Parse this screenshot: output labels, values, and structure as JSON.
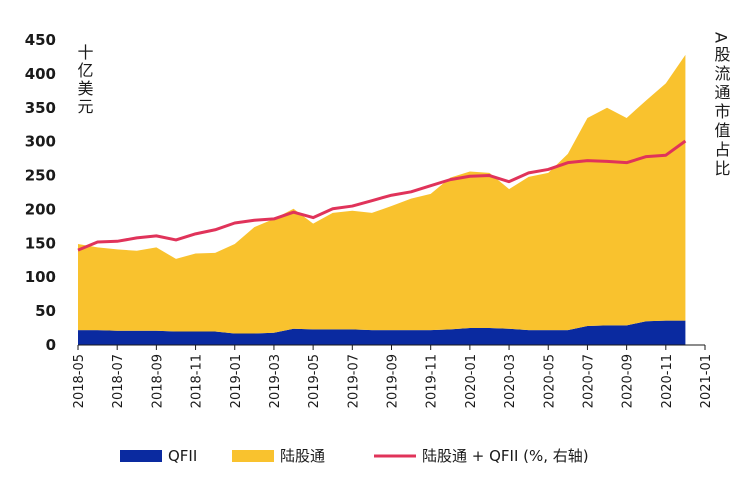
{
  "chart_data": {
    "type": "area",
    "title": "",
    "ylabel": "十亿美元",
    "y2label": "A股流通市值占比",
    "ylim": [
      0,
      450
    ],
    "yticks": [
      0,
      50,
      100,
      150,
      200,
      250,
      300,
      350,
      400,
      450
    ],
    "x": [
      "2018-05",
      "2018-06",
      "2018-07",
      "2018-08",
      "2018-09",
      "2018-10",
      "2018-11",
      "2018-12",
      "2019-01",
      "2019-02",
      "2019-03",
      "2019-04",
      "2019-05",
      "2019-06",
      "2019-07",
      "2019-08",
      "2019-09",
      "2019-10",
      "2019-11",
      "2019-12",
      "2020-01",
      "2020-02",
      "2020-03",
      "2020-04",
      "2020-05",
      "2020-06",
      "2020-07",
      "2020-08",
      "2020-09",
      "2020-10",
      "2020-11",
      "2020-12"
    ],
    "xticks": [
      "2018-05",
      "2018-07",
      "2018-09",
      "2018-11",
      "2019-01",
      "2019-03",
      "2019-05",
      "2019-07",
      "2019-09",
      "2019-11",
      "2020-01",
      "2020-03",
      "2020-05",
      "2020-07",
      "2020-09",
      "2020-11",
      "2021-01"
    ],
    "series": [
      {
        "name": "QFII",
        "kind": "area",
        "color": "#0a2aa0",
        "values": [
          22,
          22,
          21,
          21,
          21,
          20,
          20,
          20,
          17,
          17,
          18,
          24,
          23,
          23,
          23,
          22,
          22,
          22,
          22,
          23,
          25,
          25,
          24,
          22,
          22,
          22,
          28,
          29,
          29,
          35,
          36,
          36
        ]
      },
      {
        "name": "陆股通",
        "kind": "area",
        "color": "#f9c22e",
        "values": [
          127,
          122,
          120,
          118,
          123,
          107,
          115,
          116,
          132,
          157,
          168,
          177,
          156,
          172,
          175,
          173,
          183,
          194,
          201,
          224,
          231,
          229,
          206,
          226,
          232,
          260,
          307,
          321,
          306,
          326,
          350,
          392
        ]
      },
      {
        "name": "陆股通 + QFII (%, 右轴)",
        "kind": "line",
        "color": "#e0335a",
        "values": [
          140,
          152,
          153,
          158,
          161,
          155,
          164,
          170,
          180,
          184,
          186,
          196,
          188,
          201,
          205,
          213,
          221,
          226,
          235,
          244,
          249,
          250,
          241,
          254,
          259,
          269,
          272,
          271,
          269,
          278,
          280,
          301
        ]
      }
    ],
    "legend": [
      "QFII",
      "陆股通",
      "陆股通 + QFII (%, 右轴)"
    ],
    "legend_position": "bottom",
    "grid": false
  }
}
